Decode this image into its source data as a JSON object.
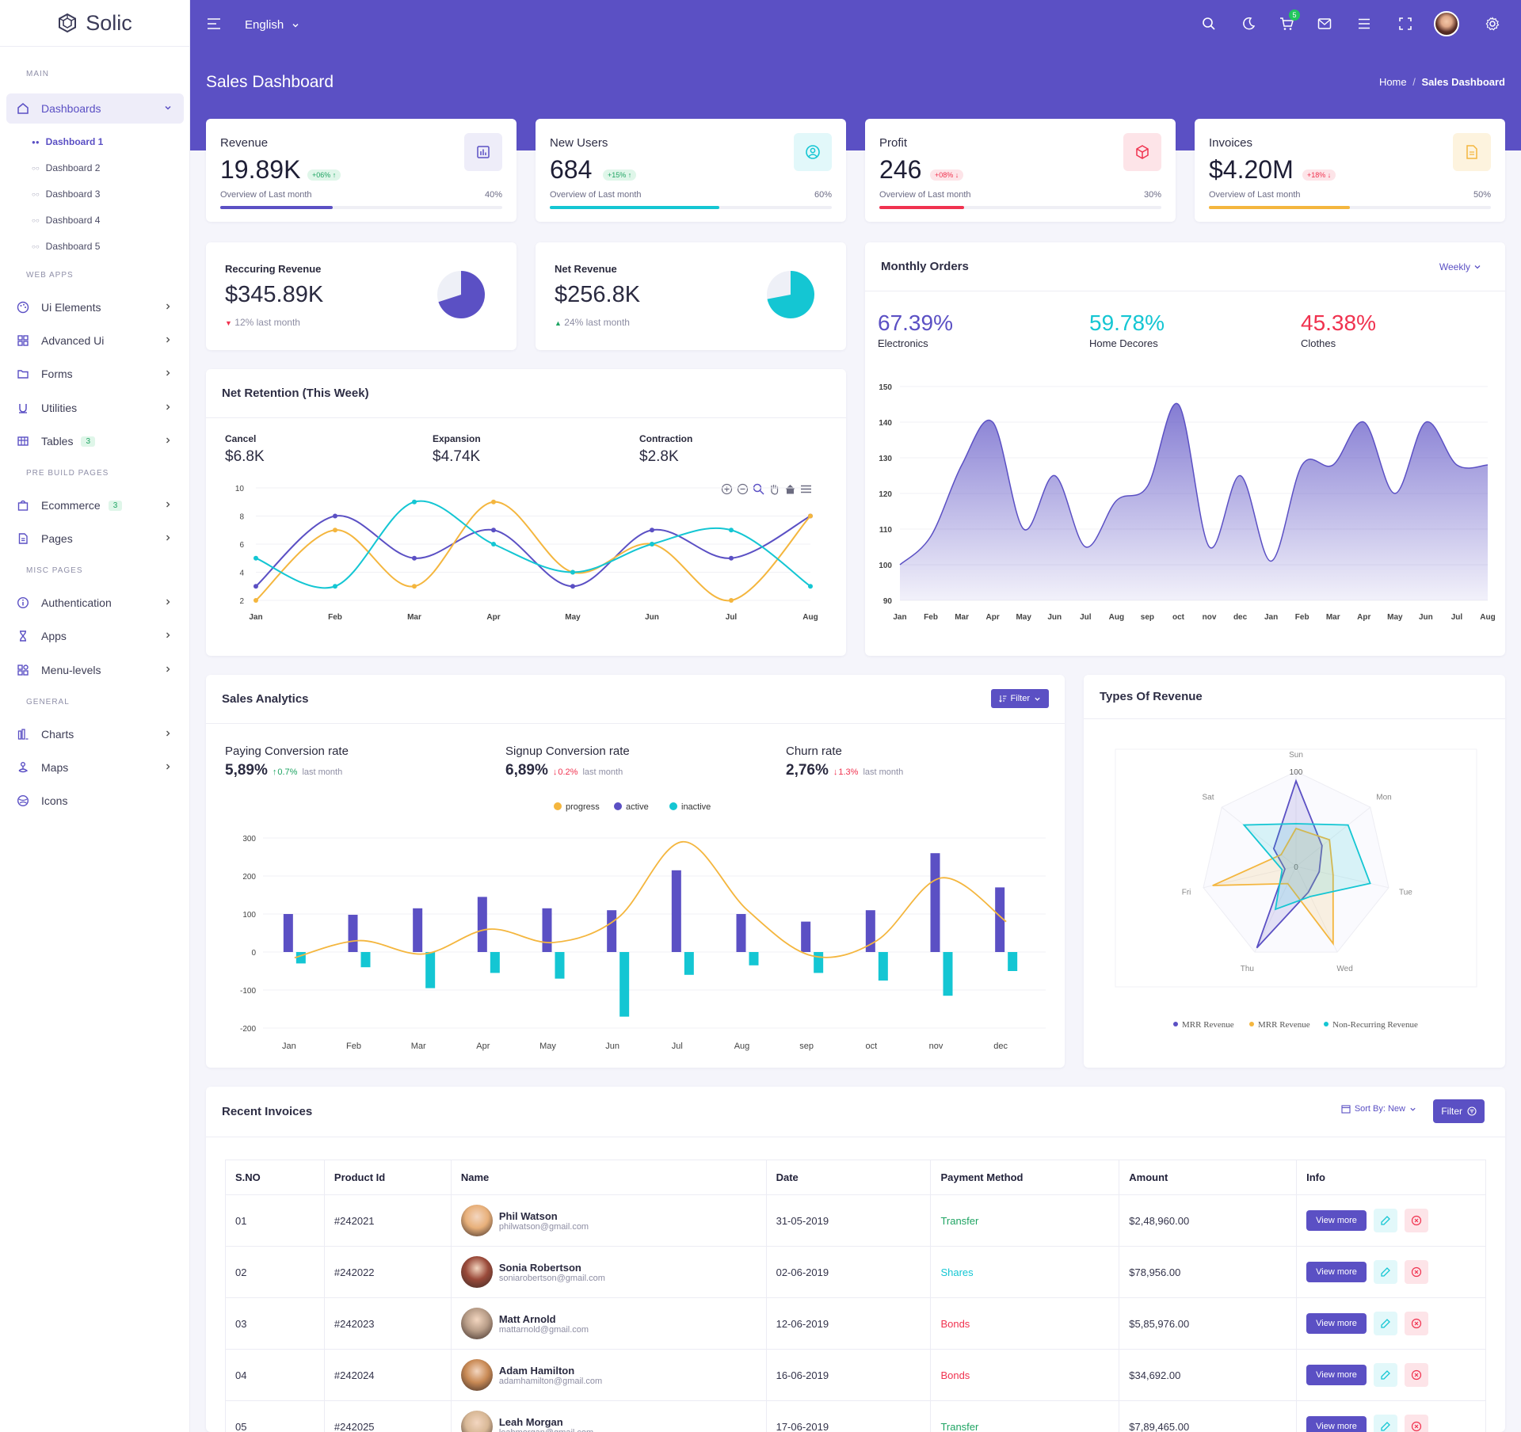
{
  "app": {
    "name": "Solic",
    "language": "English",
    "cart_count": "5"
  },
  "sidebar": {
    "sections": [
      "MAIN",
      "WEB APPS",
      "PRE BUILD PAGES",
      "MISC PAGES",
      "GENERAL"
    ],
    "dashboards": "Dashboards",
    "dash_items": [
      "Dashboard 1",
      "Dashboard 2",
      "Dashboard 3",
      "Dashboard 4",
      "Dashboard 5"
    ],
    "items": [
      "Ui Elements",
      "Advanced Ui",
      "Forms",
      "Utilities",
      "Tables",
      "Ecommerce",
      "Pages",
      "Authentication",
      "Apps",
      "Menu-levels",
      "Charts",
      "Maps",
      "Icons"
    ],
    "tables_badge": "3",
    "ecommerce_badge": "3"
  },
  "header": {
    "title": "Sales Dashboard",
    "crumb_home": "Home",
    "crumb_sep": "/",
    "crumb_current": "Sales Dashboard"
  },
  "kpis": [
    {
      "label": "Revenue",
      "value": "19.89K",
      "change": "+06% ↑",
      "overview": "Overview of Last month",
      "percent": "40%",
      "progress": 0.4,
      "color": "#5b50c4",
      "up": true
    },
    {
      "label": "New Users",
      "value": "684",
      "change": "+15% ↑",
      "overview": "Overview of Last month",
      "percent": "60%",
      "progress": 0.6,
      "color": "#14c6d3",
      "up": true
    },
    {
      "label": "Profit",
      "value": "246",
      "change": "+08% ↓",
      "overview": "Overview of Last month",
      "percent": "30%",
      "progress": 0.3,
      "color": "#f0324f",
      "up": false
    },
    {
      "label": "Invoices",
      "value": "$4.20M",
      "change": "+18% ↓",
      "overview": "Overview of Last month",
      "percent": "50%",
      "progress": 0.5,
      "color": "#f4b63e",
      "up": false
    }
  ],
  "recurring": {
    "title": "Reccuring Revenue",
    "value": "$345.89K",
    "note": "12% last month",
    "share": 0.7,
    "color": "#5b50c4"
  },
  "net_revenue": {
    "title": "Net Revenue",
    "value": "$256.8K",
    "note": "24% last month",
    "share": 0.72,
    "color": "#14c6d3"
  },
  "monthly": {
    "title": "Monthly Orders",
    "filter": "Weekly",
    "stats": [
      {
        "v": "67.39%",
        "l": "Electronics",
        "c": "#5b50c4"
      },
      {
        "v": "59.78%",
        "l": "Home Decores",
        "c": "#14c6d3"
      },
      {
        "v": "45.38%",
        "l": "Clothes",
        "c": "#f0324f"
      }
    ]
  },
  "retention": {
    "title": "Net Retention (This Week)",
    "stats": [
      {
        "l": "Cancel",
        "v": "$6.8K"
      },
      {
        "l": "Expansion",
        "v": "$4.74K"
      },
      {
        "l": "Contraction",
        "v": "$2.8K"
      }
    ]
  },
  "sales": {
    "title": "Sales Analytics",
    "filter": "Filter",
    "stats": [
      {
        "l": "Paying Conversion rate",
        "v": "5,89%",
        "ch": "0.7%",
        "up": true,
        "suffix": "last month"
      },
      {
        "l": "Signup Conversion rate",
        "v": "6,89%",
        "ch": "0.2%",
        "up": false,
        "suffix": "last month"
      },
      {
        "l": "Churn rate",
        "v": "2,76%",
        "ch": "1.3%",
        "up": false,
        "suffix": "last month"
      }
    ]
  },
  "types": {
    "title": "Types Of Revenue"
  },
  "invoices": {
    "title": "Recent Invoices",
    "sort": "Sort By: New",
    "filter": "Filter",
    "columns": [
      "S.NO",
      "Product Id",
      "Name",
      "Date",
      "Payment Method",
      "Amount",
      "Info"
    ],
    "rows": [
      {
        "sno": "01",
        "pid": "#242021",
        "name": "Phil Watson",
        "email": "philwatson@gmail.com",
        "date": "31-05-2019",
        "method": "Transfer",
        "mcolor": "#1fa463",
        "amount": "$2,48,960.00",
        "av": "#e8b07a"
      },
      {
        "sno": "02",
        "pid": "#242022",
        "name": "Sonia Robertson",
        "email": "soniarobertson@gmail.com",
        "date": "02-06-2019",
        "method": "Shares",
        "mcolor": "#14c6d3",
        "amount": "$78,956.00",
        "av": "#9a4a3a"
      },
      {
        "sno": "03",
        "pid": "#242023",
        "name": "Matt Arnold",
        "email": "mattarnold@gmail.com",
        "date": "12-06-2019",
        "method": "Bonds",
        "mcolor": "#f0324f",
        "amount": "$5,85,976.00",
        "av": "#b79c87"
      },
      {
        "sno": "04",
        "pid": "#242024",
        "name": "Adam Hamilton",
        "email": "adamhamilton@gmail.com",
        "date": "16-06-2019",
        "method": "Bonds",
        "mcolor": "#f0324f",
        "amount": "$34,692.00",
        "av": "#c98a55"
      },
      {
        "sno": "05",
        "pid": "#242025",
        "name": "Leah Morgan",
        "email": "leahmorgan@gmail.com",
        "date": "17-06-2019",
        "method": "Transfer",
        "mcolor": "#1fa463",
        "amount": "$7,89,465.00",
        "av": "#d8b896"
      }
    ],
    "view_label": "View more"
  },
  "chart_data": [
    {
      "type": "line",
      "title": "Net Retention (This Week)",
      "categories": [
        "Jan",
        "Feb",
        "Mar",
        "Apr",
        "May",
        "Jun",
        "Jul",
        "Aug"
      ],
      "ylim": [
        2,
        10
      ],
      "yticks": [
        2,
        4,
        6,
        8,
        10
      ],
      "series": [
        {
          "color": "#5b50c4",
          "values": [
            3,
            8,
            5,
            7,
            3,
            7,
            5,
            8
          ]
        },
        {
          "color": "#f4b63e",
          "values": [
            2,
            7,
            3,
            9,
            4,
            6,
            2,
            8
          ]
        },
        {
          "color": "#14c6d3",
          "values": [
            5,
            3,
            9,
            6,
            4,
            6,
            7,
            3
          ]
        }
      ]
    },
    {
      "type": "area",
      "title": "Monthly Orders",
      "categories": [
        "Jan",
        "Feb",
        "Mar",
        "Apr",
        "May",
        "Jun",
        "Jul",
        "Aug",
        "sep",
        "oct",
        "nov",
        "dec",
        "Jan",
        "Feb",
        "Mar",
        "Apr",
        "May",
        "Jun",
        "Jul",
        "Aug"
      ],
      "ylim": [
        90,
        150
      ],
      "yticks": [
        90,
        100,
        110,
        120,
        130,
        140,
        150
      ],
      "series": [
        {
          "color": "#5b50c4",
          "values": [
            100,
            108,
            128,
            140,
            110,
            125,
            105,
            118,
            122,
            145,
            105,
            125,
            101,
            128,
            128,
            140,
            120,
            140,
            128,
            128
          ]
        }
      ]
    },
    {
      "type": "bar",
      "title": "Sales Analytics",
      "categories": [
        "Jan",
        "Feb",
        "Mar",
        "Apr",
        "May",
        "Jun",
        "Jul",
        "Aug",
        "sep",
        "oct",
        "nov",
        "dec"
      ],
      "ylim": [
        -200,
        300
      ],
      "yticks": [
        -200,
        -100,
        0,
        100,
        200,
        300
      ],
      "legend": [
        "progress",
        "active",
        "inactive"
      ],
      "series": [
        {
          "name": "active",
          "color": "#5b50c4",
          "values": [
            100,
            98,
            115,
            145,
            115,
            110,
            215,
            100,
            80,
            110,
            260,
            170
          ]
        },
        {
          "name": "inactive",
          "color": "#14c6d3",
          "values": [
            -30,
            -40,
            -95,
            -55,
            -70,
            -170,
            -60,
            -35,
            -55,
            -75,
            -115,
            -50
          ]
        },
        {
          "name": "progress",
          "color": "#f4b63e",
          "values": [
            -15,
            30,
            -5,
            60,
            25,
            90,
            290,
            110,
            -10,
            30,
            195,
            80
          ]
        }
      ]
    },
    {
      "type": "radar",
      "title": "Types Of Revenue",
      "categories": [
        "Sun",
        "Mon",
        "Tue",
        "Wed",
        "Thu",
        "Fri",
        "Sat"
      ],
      "rlabels": [
        "0",
        "100"
      ],
      "legend": [
        "MRR Revenue",
        "MRR Revenue",
        "Non-Recurring Revenue"
      ],
      "series": [
        {
          "name": "MRR Revenue",
          "color": "#5b50c4",
          "values": [
            90,
            35,
            25,
            30,
            95,
            12,
            30
          ]
        },
        {
          "name": "MRR Revenue",
          "color": "#f4b63e",
          "values": [
            40,
            45,
            40,
            90,
            20,
            90,
            20
          ]
        },
        {
          "name": "Non-Recurring Revenue",
          "color": "#14c6d3",
          "values": [
            45,
            70,
            80,
            35,
            50,
            15,
            70
          ]
        }
      ]
    }
  ]
}
